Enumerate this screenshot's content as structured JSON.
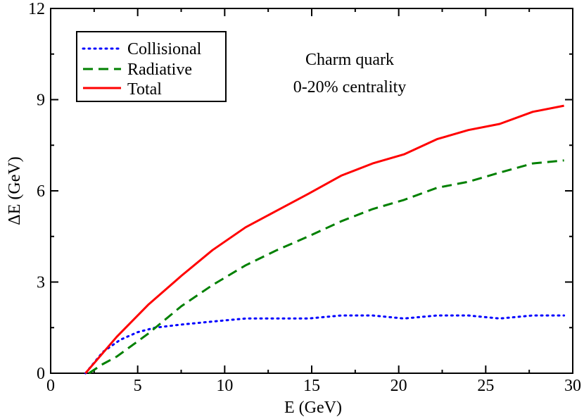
{
  "chart_data": {
    "type": "line",
    "xlabel": "E (GeV)",
    "ylabel": "ΔE (GeV)",
    "xlim": [
      0,
      30
    ],
    "ylim": [
      0,
      12
    ],
    "xticks": [
      0,
      5,
      10,
      15,
      20,
      25,
      30
    ],
    "yticks": [
      0,
      3,
      6,
      9,
      12
    ],
    "xtick_labels": [
      "0",
      "5",
      "10",
      "15",
      "20",
      "25",
      "30"
    ],
    "ytick_labels": [
      "0",
      "3",
      "6",
      "9",
      "12"
    ],
    "grid": false,
    "legend_position": "top-left",
    "annotations": [
      "Charm quark",
      "0-20% centrality"
    ],
    "series": [
      {
        "name": "Collisional",
        "color": "#0000ff",
        "style": "dotted",
        "x": [
          2.0,
          3.0,
          4.0,
          5.0,
          6.0,
          7.5,
          9.3,
          11.2,
          13.0,
          14.8,
          16.7,
          18.5,
          20.3,
          22.2,
          24.0,
          25.8,
          27.7,
          29.5
        ],
        "y": [
          0.0,
          0.7,
          1.1,
          1.35,
          1.5,
          1.6,
          1.7,
          1.8,
          1.8,
          1.8,
          1.9,
          1.9,
          1.8,
          1.9,
          1.9,
          1.8,
          1.9,
          1.9
        ]
      },
      {
        "name": "Radiative",
        "color": "#008000",
        "style": "dashed",
        "x": [
          2.2,
          3.0,
          3.8,
          5.6,
          7.5,
          9.3,
          11.2,
          13.0,
          14.8,
          16.7,
          18.5,
          20.3,
          22.2,
          24.0,
          25.8,
          27.7,
          29.5
        ],
        "y": [
          0.0,
          0.3,
          0.55,
          1.3,
          2.2,
          2.9,
          3.55,
          4.05,
          4.5,
          5.0,
          5.4,
          5.7,
          6.1,
          6.3,
          6.6,
          6.9,
          7.0
        ]
      },
      {
        "name": "Total",
        "color": "#ff0000",
        "style": "solid",
        "x": [
          2.0,
          3.8,
          5.6,
          7.5,
          9.3,
          11.2,
          13.0,
          14.8,
          16.7,
          18.5,
          20.3,
          22.2,
          24.0,
          25.8,
          27.7,
          29.5
        ],
        "y": [
          0.0,
          1.2,
          2.25,
          3.2,
          4.05,
          4.8,
          5.35,
          5.9,
          6.5,
          6.9,
          7.2,
          7.7,
          8.0,
          8.2,
          8.6,
          8.8
        ]
      }
    ]
  }
}
